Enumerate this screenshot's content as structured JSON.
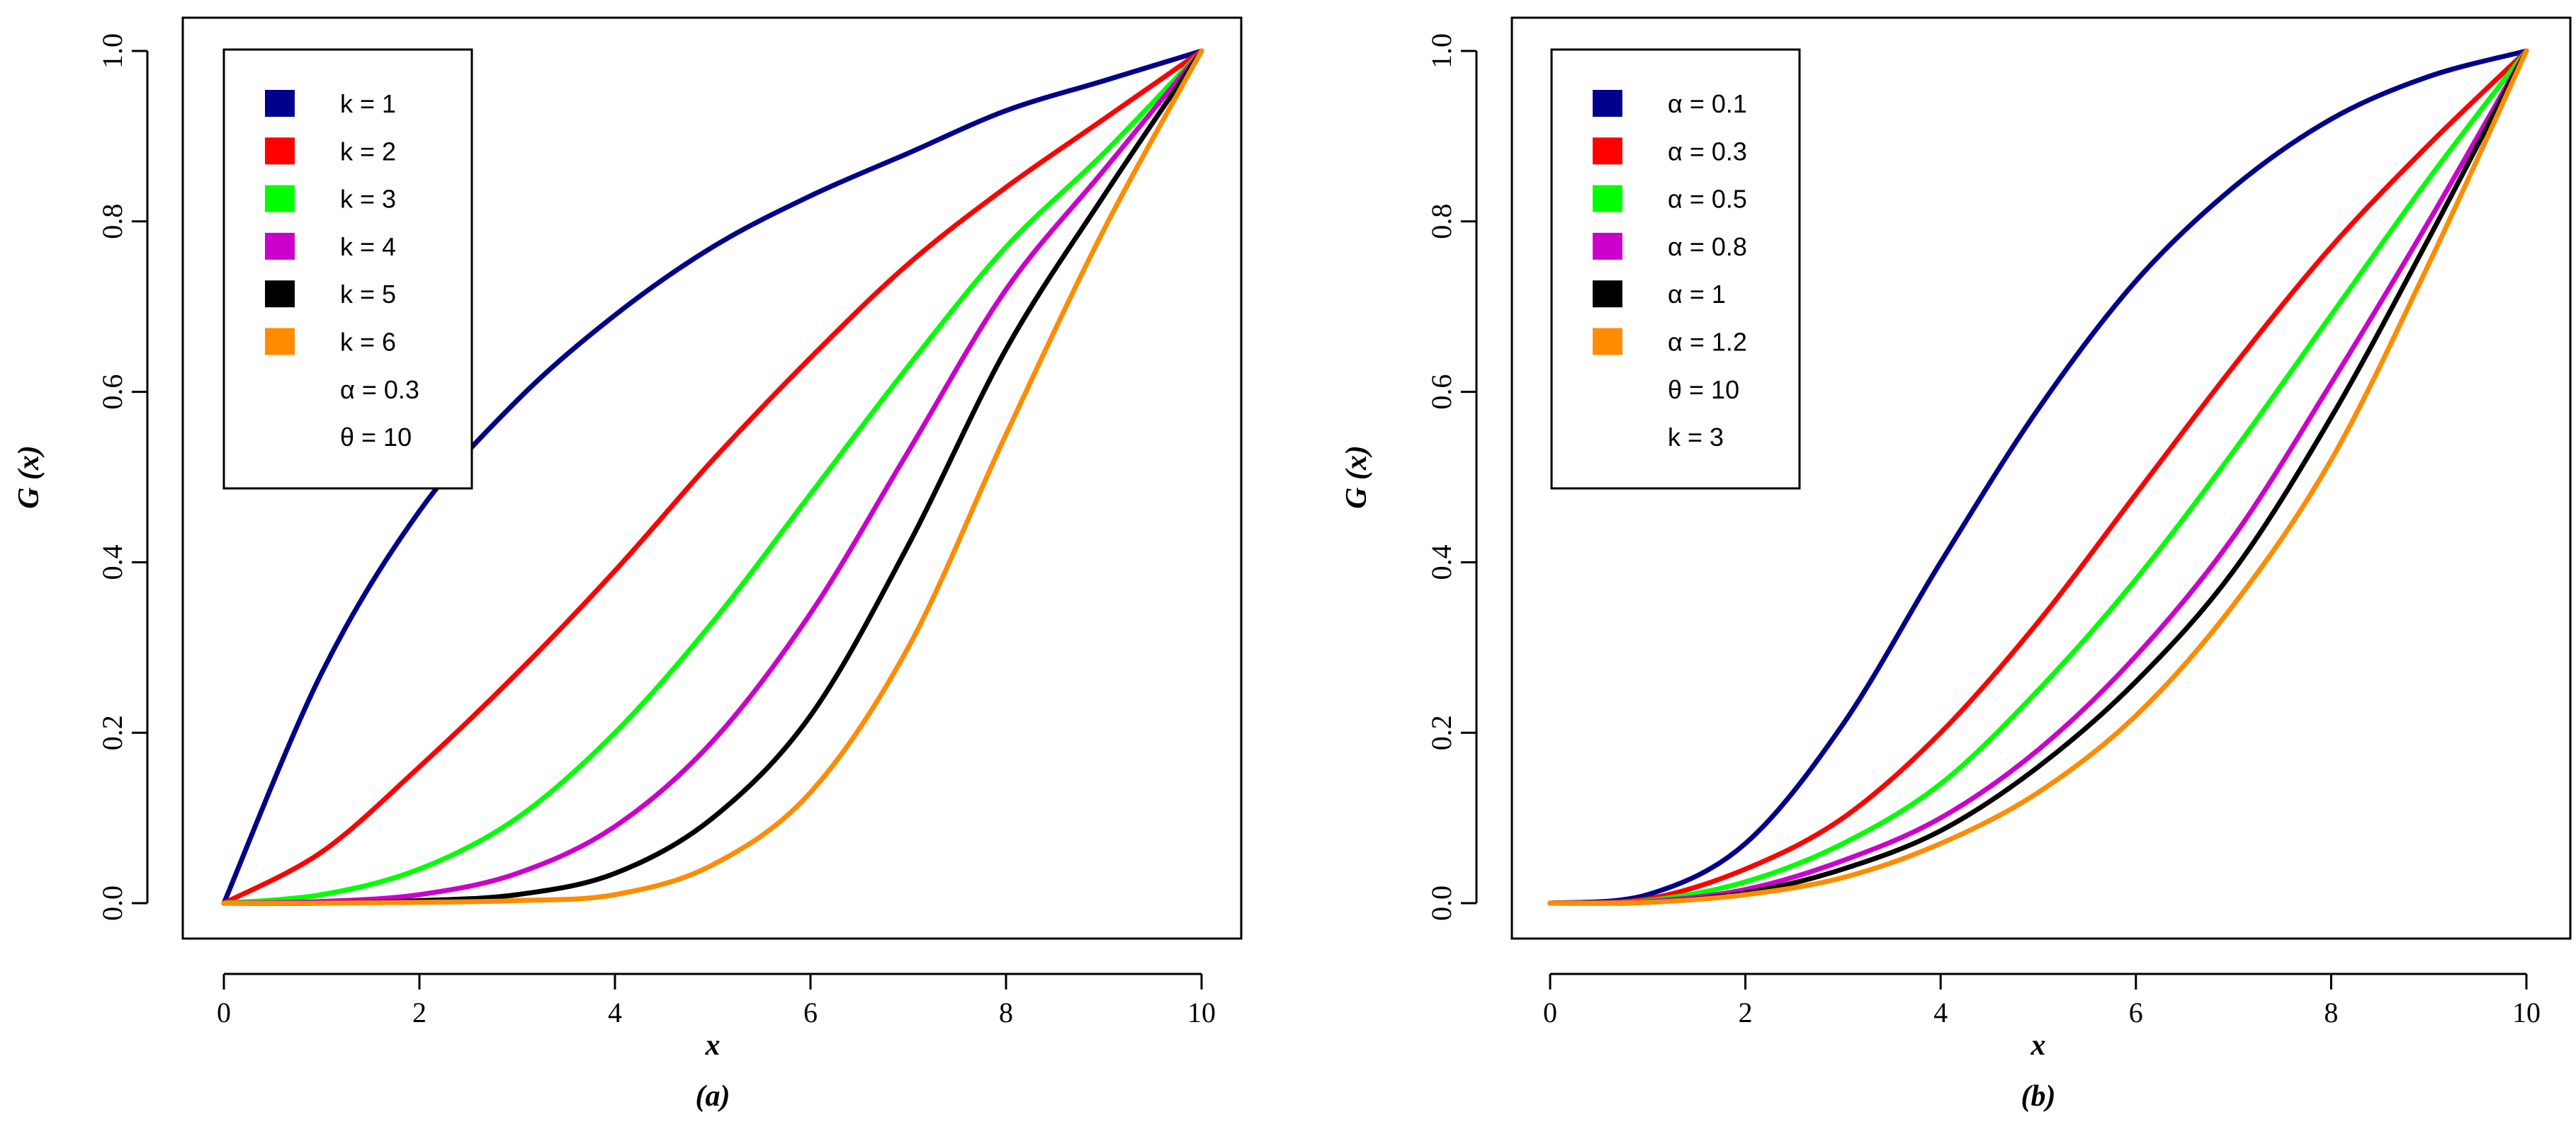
{
  "chart_data": [
    {
      "type": "line",
      "panel_label": "(a)",
      "xlabel": "x",
      "ylabel": "G (x)",
      "xlim": [
        0,
        10
      ],
      "ylim": [
        0,
        1
      ],
      "xticks": [
        "0",
        "2",
        "4",
        "6",
        "8",
        "10"
      ],
      "xtick_values": [
        0,
        2,
        4,
        6,
        8,
        10
      ],
      "yticks": [
        "0.0",
        "0.2",
        "0.4",
        "0.6",
        "0.8",
        "1.0"
      ],
      "ytick_values": [
        0,
        0.2,
        0.4,
        0.6,
        0.8,
        1.0
      ],
      "legend_position": "top-left",
      "legend_extra": [
        "α = 0.3",
        "θ = 10"
      ],
      "x": [
        0,
        1,
        2,
        3,
        4,
        5,
        6,
        7,
        8,
        9,
        10
      ],
      "series": [
        {
          "name": "k = 1",
          "color": "#00008B",
          "values": [
            0,
            0.27,
            0.46,
            0.59,
            0.69,
            0.77,
            0.83,
            0.88,
            0.93,
            0.965,
            1.0
          ]
        },
        {
          "name": "k = 2",
          "color": "#FF0000",
          "values": [
            0,
            0.06,
            0.16,
            0.27,
            0.39,
            0.52,
            0.64,
            0.75,
            0.84,
            0.92,
            1.0
          ]
        },
        {
          "name": "k = 3",
          "color": "#00FF00",
          "values": [
            0,
            0.01,
            0.04,
            0.1,
            0.2,
            0.33,
            0.48,
            0.63,
            0.77,
            0.88,
            1.0
          ]
        },
        {
          "name": "k = 4",
          "color": "#CC00CC",
          "values": [
            0,
            0.002,
            0.01,
            0.035,
            0.09,
            0.19,
            0.34,
            0.53,
            0.72,
            0.86,
            1.0
          ]
        },
        {
          "name": "k = 5",
          "color": "#000000",
          "values": [
            0,
            0.0,
            0.003,
            0.01,
            0.035,
            0.1,
            0.22,
            0.42,
            0.65,
            0.83,
            1.0
          ]
        },
        {
          "name": "k = 6",
          "color": "#FF8C00",
          "values": [
            0,
            0.0,
            0.001,
            0.003,
            0.01,
            0.045,
            0.13,
            0.3,
            0.55,
            0.79,
            1.0
          ]
        }
      ]
    },
    {
      "type": "line",
      "panel_label": "(b)",
      "xlabel": "x",
      "ylabel": "G (x)",
      "xlim": [
        0,
        10
      ],
      "ylim": [
        0,
        1
      ],
      "xticks": [
        "0",
        "2",
        "4",
        "6",
        "8",
        "10"
      ],
      "xtick_values": [
        0,
        2,
        4,
        6,
        8,
        10
      ],
      "yticks": [
        "0.0",
        "0.2",
        "0.4",
        "0.6",
        "0.8",
        "1.0"
      ],
      "ytick_values": [
        0,
        0.2,
        0.4,
        0.6,
        0.8,
        1.0
      ],
      "legend_position": "top-left",
      "legend_extra": [
        "θ = 10",
        "k = 3"
      ],
      "x": [
        0,
        1,
        2,
        3,
        4,
        5,
        6,
        7,
        8,
        9,
        10
      ],
      "series": [
        {
          "name": "α = 0.1",
          "color": "#00008B",
          "values": [
            0,
            0.01,
            0.07,
            0.21,
            0.4,
            0.58,
            0.73,
            0.84,
            0.92,
            0.97,
            1.0
          ]
        },
        {
          "name": "α = 0.3",
          "color": "#FF0000",
          "values": [
            0,
            0.005,
            0.04,
            0.1,
            0.2,
            0.33,
            0.48,
            0.63,
            0.77,
            0.89,
            1.0
          ]
        },
        {
          "name": "α = 0.5",
          "color": "#00FF00",
          "values": [
            0,
            0.003,
            0.025,
            0.07,
            0.14,
            0.25,
            0.38,
            0.53,
            0.69,
            0.85,
            1.0
          ]
        },
        {
          "name": "α = 0.8",
          "color": "#CC00CC",
          "values": [
            0,
            0.002,
            0.016,
            0.05,
            0.1,
            0.18,
            0.29,
            0.43,
            0.61,
            0.8,
            1.0
          ]
        },
        {
          "name": "α = 1",
          "color": "#000000",
          "values": [
            0,
            0.001,
            0.012,
            0.04,
            0.085,
            0.16,
            0.26,
            0.39,
            0.57,
            0.78,
            1.0
          ]
        },
        {
          "name": "α = 1.2",
          "color": "#FF8C00",
          "values": [
            0,
            0.001,
            0.01,
            0.03,
            0.07,
            0.13,
            0.22,
            0.35,
            0.52,
            0.75,
            1.0
          ]
        }
      ]
    }
  ]
}
